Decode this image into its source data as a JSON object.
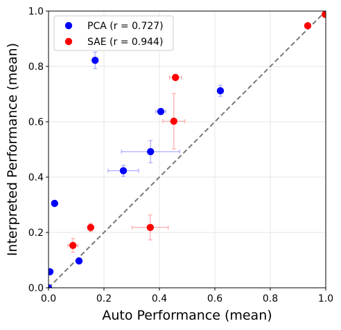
{
  "chart_data": {
    "type": "scatter",
    "title": "",
    "xlabel": "Auto Performance (mean)",
    "ylabel": "Interpreted Performance (mean)",
    "xlim": [
      0,
      1
    ],
    "ylim": [
      0,
      1
    ],
    "xticks": [
      "0.0",
      "0.2",
      "0.4",
      "0.6",
      "0.8",
      "1.0"
    ],
    "yticks": [
      "0.0",
      "0.2",
      "0.4",
      "0.6",
      "0.8",
      "1.0"
    ],
    "grid": true,
    "legend_position": "top-left",
    "reference_line": {
      "style": "dashed",
      "color": "#777777",
      "from": [
        0,
        0
      ],
      "to": [
        1,
        1
      ]
    },
    "series": [
      {
        "name": "PCA (r = 0.727)",
        "color": "#0000ff",
        "errorbar_color": "#9999ff",
        "points": [
          {
            "x": 0.0,
            "y": 0.0,
            "xerr": 0,
            "yerr": 0
          },
          {
            "x": 0.005,
            "y": 0.058,
            "xerr": 0,
            "yerr": 0
          },
          {
            "x": 0.022,
            "y": 0.305,
            "xerr": 0,
            "yerr": 0
          },
          {
            "x": 0.11,
            "y": 0.097,
            "xerr": 0.008,
            "yerr": 0.01
          },
          {
            "x": 0.168,
            "y": 0.822,
            "xerr": 0.008,
            "yerr": 0.03
          },
          {
            "x": 0.27,
            "y": 0.423,
            "xerr": 0.055,
            "yerr": 0.02
          },
          {
            "x": 0.368,
            "y": 0.492,
            "xerr": 0.105,
            "yerr": 0.04
          },
          {
            "x": 0.405,
            "y": 0.637,
            "xerr": 0.018,
            "yerr": 0.01
          },
          {
            "x": 0.62,
            "y": 0.712,
            "xerr": 0.008,
            "yerr": 0.02
          }
        ]
      },
      {
        "name": "SAE (r = 0.944)",
        "color": "#ff0000",
        "errorbar_color": "#ff9999",
        "points": [
          {
            "x": 0.088,
            "y": 0.153,
            "xerr": 0.018,
            "yerr": 0.025
          },
          {
            "x": 0.152,
            "y": 0.218,
            "xerr": 0.01,
            "yerr": 0.015
          },
          {
            "x": 0.367,
            "y": 0.218,
            "xerr": 0.065,
            "yerr": 0.045
          },
          {
            "x": 0.452,
            "y": 0.602,
            "xerr": 0.04,
            "yerr": 0.1
          },
          {
            "x": 0.458,
            "y": 0.76,
            "xerr": 0.022,
            "yerr": 0.01
          },
          {
            "x": 0.935,
            "y": 0.947,
            "xerr": 0.008,
            "yerr": 0
          },
          {
            "x": 0.998,
            "y": 0.988,
            "xerr": 0,
            "yerr": 0
          }
        ]
      }
    ]
  }
}
